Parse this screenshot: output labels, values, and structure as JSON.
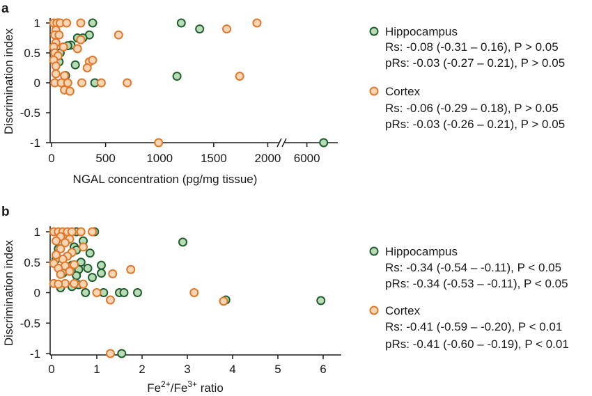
{
  "colors": {
    "hippocampus_stroke": "#1f5e2e",
    "hippocampus_fill": "#b9dcb6",
    "cortex_stroke": "#e2772a",
    "cortex_fill": "#f6d6b5"
  },
  "chart_data": [
    {
      "panel": "a",
      "type": "scatter",
      "xlabel": "NGAL concentration (pg/mg tissue)",
      "ylabel": "Discrimination index",
      "xlim_segment1": [
        0,
        2100
      ],
      "xlim_segment2": [
        5500,
        6700
      ],
      "x_axis_break": true,
      "ylim": [
        -1,
        1
      ],
      "x_ticks": [
        {
          "value": 0,
          "label": "0"
        },
        {
          "value": 500,
          "label": "500"
        },
        {
          "value": 1000,
          "label": "1000"
        },
        {
          "value": 1500,
          "label": "1500"
        },
        {
          "value": 2000,
          "label": "2000"
        },
        {
          "value": 6000,
          "label": "6000"
        }
      ],
      "y_ticks": [
        {
          "value": 1,
          "label": "1"
        },
        {
          "value": 0.5,
          "label": "0.5"
        },
        {
          "value": 0,
          "label": "0"
        },
        {
          "value": -0.5,
          "label": "-0.5"
        },
        {
          "value": -1,
          "label": "-1"
        }
      ],
      "series": [
        {
          "name": "Hippocampus",
          "stats": [
            "Rs: -0.08 (-0.31 – 0.16), P > 0.05",
            "pRs: -0.03 (-0.27 – 0.21), P > 0.05"
          ],
          "points": [
            [
              380,
              1.0
            ],
            [
              1200,
              1.0
            ],
            [
              1370,
              0.9
            ],
            [
              350,
              0.8
            ],
            [
              240,
              0.75
            ],
            [
              290,
              0.75
            ],
            [
              180,
              0.63
            ],
            [
              150,
              0.62
            ],
            [
              220,
              0.3
            ],
            [
              130,
              0.12
            ],
            [
              400,
              0.0
            ],
            [
              1160,
              0.11
            ],
            [
              60,
              1.0
            ],
            [
              80,
              0.5
            ],
            [
              70,
              0.35
            ],
            [
              6380,
              -1.0
            ]
          ]
        },
        {
          "name": "Cortex",
          "stats": [
            "Rs: -0.06 (-0.29 – 0.18), P > 0.05",
            "pRs: -0.03 (-0.26 – 0.21), P > 0.05"
          ],
          "points": [
            [
              20,
              1.0
            ],
            [
              50,
              1.0
            ],
            [
              80,
              1.0
            ],
            [
              140,
              1.0
            ],
            [
              270,
              1.0
            ],
            [
              1900,
              1.0
            ],
            [
              1620,
              0.9
            ],
            [
              40,
              0.88
            ],
            [
              30,
              0.8
            ],
            [
              70,
              0.8
            ],
            [
              620,
              0.8
            ],
            [
              270,
              0.72
            ],
            [
              40,
              0.67
            ],
            [
              20,
              0.6
            ],
            [
              110,
              0.6
            ],
            [
              240,
              0.57
            ],
            [
              30,
              0.5
            ],
            [
              60,
              0.45
            ],
            [
              20,
              0.38
            ],
            [
              350,
              0.35
            ],
            [
              380,
              0.38
            ],
            [
              40,
              0.28
            ],
            [
              330,
              0.25
            ],
            [
              40,
              0.15
            ],
            [
              120,
              0.12
            ],
            [
              1740,
              0.11
            ],
            [
              30,
              0.0
            ],
            [
              90,
              0.0
            ],
            [
              150,
              0.0
            ],
            [
              280,
              0.0
            ],
            [
              460,
              0.0
            ],
            [
              700,
              0.0
            ],
            [
              120,
              -0.12
            ],
            [
              170,
              -0.14
            ],
            [
              990,
              -1.0
            ]
          ]
        }
      ],
      "legend_position": "right"
    },
    {
      "panel": "b",
      "type": "scatter",
      "xlabel_base": "Fe",
      "xlabel_sup1": "2+",
      "xlabel_mid": "/Fe",
      "xlabel_sup2": "3+",
      "xlabel_end": " ratio",
      "ylabel": "Discrimination index",
      "xlim": [
        0,
        6.4
      ],
      "ylim": [
        -1,
        1
      ],
      "x_ticks": [
        {
          "value": 0,
          "label": "0"
        },
        {
          "value": 1,
          "label": "1"
        },
        {
          "value": 2,
          "label": "2"
        },
        {
          "value": 3,
          "label": "3"
        },
        {
          "value": 4,
          "label": "4"
        },
        {
          "value": 5,
          "label": "5"
        },
        {
          "value": 6,
          "label": "6"
        }
      ],
      "y_ticks": [
        {
          "value": 1,
          "label": "1"
        },
        {
          "value": 0.5,
          "label": "0.5"
        },
        {
          "value": 0,
          "label": "0"
        },
        {
          "value": -0.5,
          "label": "-0.5"
        },
        {
          "value": -1,
          "label": "-1"
        }
      ],
      "series": [
        {
          "name": "Hippocampus",
          "stats": [
            "Rs: -0.34 (-0.54 – -0.11),  P < 0.05",
            "pRs: -0.34 (-0.53 – -0.11), P < 0.05"
          ],
          "points": [
            [
              0.55,
              1.0
            ],
            [
              0.95,
              1.0
            ],
            [
              0.3,
              0.95
            ],
            [
              0.7,
              0.85
            ],
            [
              2.9,
              0.83
            ],
            [
              0.5,
              0.75
            ],
            [
              0.15,
              0.72
            ],
            [
              0.55,
              0.7
            ],
            [
              0.85,
              0.65
            ],
            [
              0.1,
              0.55
            ],
            [
              0.65,
              0.5
            ],
            [
              0.45,
              0.45
            ],
            [
              1.1,
              0.45
            ],
            [
              0.8,
              0.4
            ],
            [
              0.6,
              0.38
            ],
            [
              0.25,
              0.32
            ],
            [
              1.1,
              0.32
            ],
            [
              0.55,
              0.28
            ],
            [
              0.9,
              0.25
            ],
            [
              0.6,
              0.13
            ],
            [
              0.45,
              0.1
            ],
            [
              0.2,
              0.08
            ],
            [
              1.5,
              0.0
            ],
            [
              1.6,
              0.0
            ],
            [
              1.9,
              0.0
            ],
            [
              0.75,
              0.0
            ],
            [
              1.15,
              0.0
            ],
            [
              3.85,
              -0.12
            ],
            [
              5.95,
              -0.13
            ],
            [
              1.55,
              -1.0
            ]
          ]
        },
        {
          "name": "Cortex",
          "stats": [
            "Rs: -0.41 (-0.59 – -0.20), P < 0.01",
            "pRs: -0.41 (-0.60 – -0.19), P < 0.01"
          ],
          "points": [
            [
              0.05,
              1.0
            ],
            [
              0.15,
              1.0
            ],
            [
              0.25,
              1.0
            ],
            [
              0.35,
              1.0
            ],
            [
              0.45,
              1.0
            ],
            [
              0.65,
              1.0
            ],
            [
              0.9,
              1.0
            ],
            [
              0.2,
              0.92
            ],
            [
              0.4,
              0.88
            ],
            [
              0.1,
              0.85
            ],
            [
              0.3,
              0.82
            ],
            [
              0.7,
              0.75
            ],
            [
              0.2,
              0.72
            ],
            [
              0.45,
              0.66
            ],
            [
              0.1,
              0.62
            ],
            [
              0.35,
              0.6
            ],
            [
              0.25,
              0.55
            ],
            [
              0.05,
              0.48
            ],
            [
              0.5,
              0.46
            ],
            [
              0.3,
              0.44
            ],
            [
              0.15,
              0.4
            ],
            [
              1.75,
              0.38
            ],
            [
              0.4,
              0.35
            ],
            [
              0.2,
              0.3
            ],
            [
              1.35,
              0.31
            ],
            [
              0.05,
              0.15
            ],
            [
              0.3,
              0.15
            ],
            [
              0.5,
              0.15
            ],
            [
              0.7,
              0.14
            ],
            [
              0.15,
              0.14
            ],
            [
              1.0,
              0.0
            ],
            [
              3.15,
              0.0
            ],
            [
              1.3,
              -0.12
            ],
            [
              3.8,
              -0.14
            ],
            [
              1.3,
              -1.0
            ]
          ]
        }
      ],
      "legend_position": "right"
    }
  ]
}
